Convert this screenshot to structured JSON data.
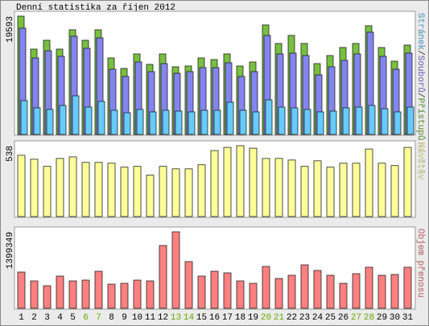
{
  "chart_data": {
    "type": "bar",
    "title": "Denní statistika za říjen 2012",
    "categories": [
      "1",
      "2",
      "3",
      "4",
      "5",
      "6",
      "7",
      "8",
      "9",
      "10",
      "11",
      "12",
      "13",
      "14",
      "15",
      "16",
      "17",
      "18",
      "19",
      "20",
      "21",
      "22",
      "23",
      "24",
      "25",
      "26",
      "27",
      "28",
      "29",
      "30",
      "31"
    ],
    "category_colors": [
      "#000000",
      "#000000",
      "#000000",
      "#000000",
      "#000000",
      "#66aa00",
      "#66aa00",
      "#000000",
      "#000000",
      "#000000",
      "#000000",
      "#000000",
      "#66aa00",
      "#66aa00",
      "#000000",
      "#000000",
      "#000000",
      "#000000",
      "#000000",
      "#66aa00",
      "#66aa00",
      "#000000",
      "#000000",
      "#000000",
      "#000000",
      "#000000",
      "#66aa00",
      "#66aa00",
      "#000000",
      "#000000",
      "#000000"
    ],
    "legend_separator": "/",
    "panels": [
      {
        "ylim": [
          0,
          19593
        ],
        "yticks": [
          19593
        ],
        "series": [
          {
            "name": "Přístupů",
            "color": "#77c040",
            "values": [
              19593,
              14130,
              15596,
              14130,
              17329,
              15596,
              17329,
              12664,
              10931,
              13330,
              11597,
              13330,
              11197,
              11331,
              12664,
              12397,
              13330,
              11331,
              11997,
              18129,
              15063,
              16396,
              15063,
              11730,
              13063,
              14396,
              15063,
              17996,
              14396,
              12130,
              14796
            ]
          },
          {
            "name": "Souborů",
            "color": "#8484f0",
            "values": [
              17596,
              12664,
              13863,
              12930,
              16263,
              14263,
              15996,
              10797,
              9598,
              11997,
              10397,
              11730,
              10131,
              10397,
              11064,
              11064,
              11864,
              9598,
              10397,
              16396,
              13330,
              13463,
              13063,
              9864,
              11197,
              12264,
              13330,
              16929,
              12930,
              10797,
              13463
            ]
          },
          {
            "name": "Stránek",
            "color": "#66ccff",
            "values": [
              5599,
              4399,
              4132,
              4799,
              6398,
              4532,
              5465,
              3999,
              3599,
              4132,
              3732,
              3999,
              3866,
              3732,
              3999,
              3999,
              5332,
              3999,
              3732,
              5732,
              4532,
              4399,
              4132,
              3732,
              3866,
              4399,
              4532,
              4799,
              4266,
              3732,
              4532
            ]
          }
        ]
      },
      {
        "ylim": [
          0,
          538
        ],
        "yticks": [
          538
        ],
        "series": [
          {
            "name": "Návštěv",
            "color": "#ffff99",
            "values": [
              465,
              435,
              381,
              441,
              453,
              411,
              411,
              405,
              375,
              381,
              314,
              381,
              362,
              362,
              393,
              501,
              525,
              538,
              519,
              441,
              441,
              429,
              381,
              423,
              375,
              405,
              405,
              513,
              405,
              387,
              525
            ]
          }
        ]
      },
      {
        "ylim": [
          0,
          1399349
        ],
        "yticks": [
          1399349
        ],
        "series": [
          {
            "name": "Objem přenosu",
            "color": "#ff8080",
            "values": [
              662850,
              500820,
              412440,
              589200,
              500820,
              515550,
              677580,
              441900,
              456630,
              515550,
              500820,
              1148940,
              1399349,
              854340,
              589200,
              677580,
              648120,
              500820,
              456630,
              765960,
              545010,
              603930,
              795420,
              692310,
              603930,
              456630,
              633390,
              751230,
              603930,
              618660,
              751230
            ]
          }
        ]
      }
    ]
  }
}
